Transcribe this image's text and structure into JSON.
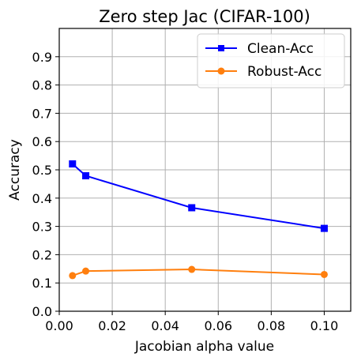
{
  "chart_data": {
    "type": "line",
    "title": "Zero step Jac (CIFAR-100)",
    "xlabel": "Jacobian alpha value",
    "ylabel": "Accuracy",
    "xlim": [
      0.0,
      0.11
    ],
    "ylim": [
      0.0,
      1.0
    ],
    "x_ticks": [
      "0.00",
      "0.02",
      "0.04",
      "0.06",
      "0.08",
      "0.10"
    ],
    "y_ticks": [
      "0.0",
      "0.1",
      "0.2",
      "0.3",
      "0.4",
      "0.5",
      "0.6",
      "0.7",
      "0.8",
      "0.9"
    ],
    "grid": true,
    "legend_position": "top-right",
    "series": [
      {
        "name": "Clean-Acc",
        "color": "#0000ff",
        "marker": "square",
        "x": [
          0.005,
          0.01,
          0.05,
          0.1
        ],
        "y": [
          0.521,
          0.479,
          0.366,
          0.293
        ]
      },
      {
        "name": "Robust-Acc",
        "color": "#ff7f0e",
        "marker": "circle",
        "x": [
          0.005,
          0.01,
          0.05,
          0.1
        ],
        "y": [
          0.126,
          0.142,
          0.148,
          0.13
        ]
      }
    ]
  }
}
